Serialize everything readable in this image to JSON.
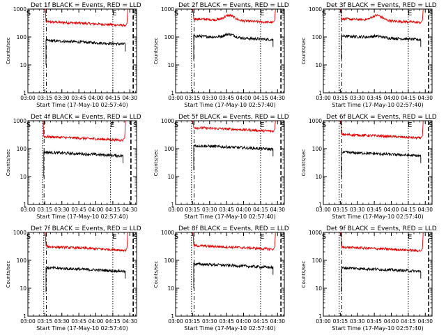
{
  "layout": {
    "rows": 3,
    "cols": 3
  },
  "style": {
    "events_color": "#000000",
    "lld_color": "#e00000",
    "background": "#ffffff"
  },
  "common": {
    "ylabel": "Counts/sec",
    "xlabel": "Start Time (17-May-10 02:57:40)",
    "x_ticks": [
      "03:00",
      "03:15",
      "03:30",
      "03:45",
      "04:00",
      "04:15",
      "04:30"
    ],
    "x_tick_minutes": [
      0,
      15,
      30,
      45,
      60,
      75,
      90
    ],
    "xlim_minutes": [
      0,
      96
    ],
    "y_ticks": [
      "1",
      "10",
      "100",
      "1000"
    ],
    "y_tick_values": [
      1,
      10,
      100,
      1000
    ],
    "ylim": [
      1,
      1000
    ],
    "yscale": "log",
    "marker_start": "S",
    "marker_end": "E",
    "title_suffix": "BLACK = Events, RED = LLD"
  },
  "chart_data": [
    {
      "type": "line",
      "title": "Det 1f",
      "events_level": 55,
      "lld_level": 260,
      "lld_bump": 0,
      "ev_bump": 0,
      "data_start_min": 16,
      "data_end_min": 86,
      "dot1_min": 14,
      "dot2_min": 75,
      "dash_min": 93
    },
    {
      "type": "line",
      "title": "Det 2f",
      "events_level": 80,
      "lld_level": 330,
      "lld_bump": 0.18,
      "ev_bump": 0.12,
      "data_start_min": 16,
      "data_end_min": 86,
      "dot1_min": 14,
      "dot2_min": 75,
      "dash_min": 93
    },
    {
      "type": "line",
      "title": "Det 3f",
      "events_level": 80,
      "lld_level": 330,
      "lld_bump": 0.18,
      "ev_bump": 0.05,
      "data_start_min": 16,
      "data_end_min": 86,
      "dot1_min": 14,
      "dot2_min": 75,
      "dash_min": 93
    },
    {
      "type": "line",
      "title": "Det 4f",
      "events_level": 55,
      "lld_level": 200,
      "lld_bump": 0,
      "ev_bump": 0,
      "data_start_min": 14,
      "data_end_min": 84,
      "dot1_min": 13,
      "dot2_min": 73,
      "dash_min": 91
    },
    {
      "type": "line",
      "title": "Det 5f",
      "events_level": 95,
      "lld_level": 420,
      "lld_bump": 0,
      "ev_bump": 0,
      "data_start_min": 16,
      "data_end_min": 86,
      "dot1_min": 14,
      "dot2_min": 75,
      "dash_min": 93
    },
    {
      "type": "line",
      "title": "Det 6f",
      "events_level": 55,
      "lld_level": 240,
      "lld_bump": 0,
      "ev_bump": 0,
      "data_start_min": 16,
      "data_end_min": 86,
      "dot1_min": 14,
      "dot2_min": 75,
      "dash_min": 93
    },
    {
      "type": "line",
      "title": "Det 7f",
      "events_level": 40,
      "lld_level": 230,
      "lld_bump": 0,
      "ev_bump": 0,
      "data_start_min": 16,
      "data_end_min": 86,
      "dot1_min": 14,
      "dot2_min": 75,
      "dash_min": 93
    },
    {
      "type": "line",
      "title": "Det 8f",
      "events_level": 55,
      "lld_level": 250,
      "lld_bump": 0,
      "ev_bump": 0,
      "data_start_min": 16,
      "data_end_min": 86,
      "dot1_min": 14,
      "dot2_min": 75,
      "dash_min": 93
    },
    {
      "type": "line",
      "title": "Det 9f",
      "events_level": 40,
      "lld_level": 220,
      "lld_bump": 0,
      "ev_bump": 0,
      "data_start_min": 16,
      "data_end_min": 86,
      "dot1_min": 14,
      "dot2_min": 75,
      "dash_min": 93
    }
  ]
}
